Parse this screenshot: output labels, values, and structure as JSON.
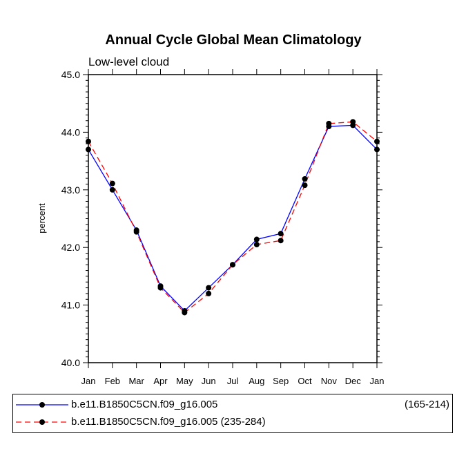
{
  "chart_data": {
    "type": "line",
    "title": "Annual Cycle Global Mean Climatology",
    "subtitle": "Low-level cloud",
    "xlabel": "",
    "ylabel": "percent",
    "ylim": [
      40.0,
      45.0
    ],
    "yticks": [
      "40.0",
      "41.0",
      "42.0",
      "43.0",
      "44.0",
      "45.0"
    ],
    "categories": [
      "Jan",
      "Feb",
      "Mar",
      "Apr",
      "May",
      "Jun",
      "Jul",
      "Aug",
      "Sep",
      "Oct",
      "Nov",
      "Dec",
      "Jan"
    ],
    "series": [
      {
        "name": "b.e11.B1850C5CN.f09_g16.005",
        "years": "(165-214)",
        "color": "#0000ff",
        "dash": "solid",
        "values": [
          43.7,
          43.0,
          42.3,
          41.33,
          40.9,
          41.3,
          41.7,
          42.14,
          42.24,
          43.19,
          44.1,
          44.12,
          43.7
        ]
      },
      {
        "name": "b.e11.B1850C5CN.f09_g16.005",
        "years": "(235-284)",
        "color": "#ff0000",
        "dash": "dashed",
        "values": [
          43.84,
          43.11,
          42.27,
          41.3,
          40.87,
          41.2,
          41.7,
          42.05,
          42.12,
          43.08,
          44.15,
          44.18,
          43.84
        ]
      }
    ]
  }
}
